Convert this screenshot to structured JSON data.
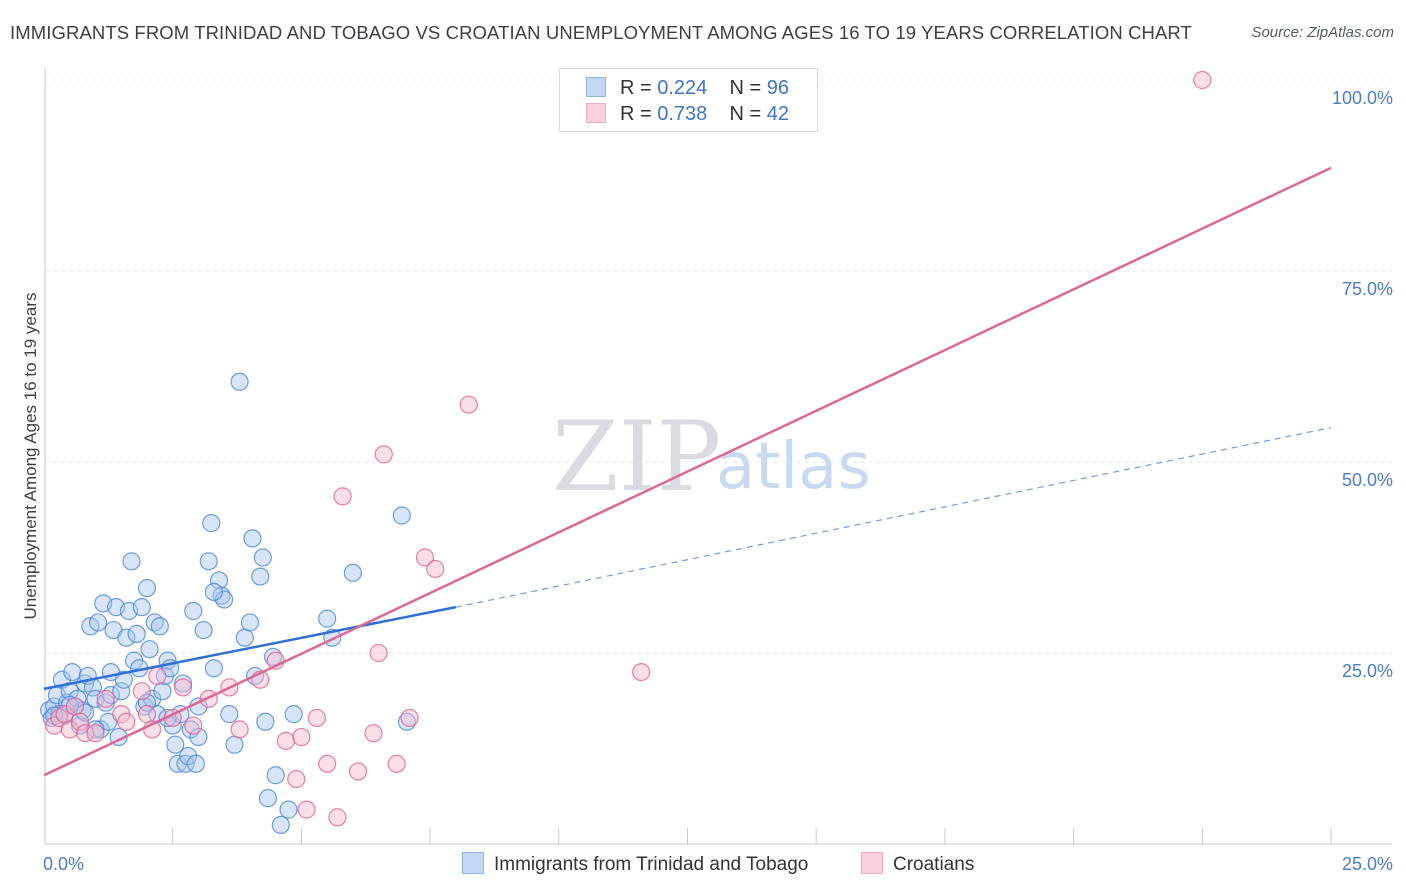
{
  "header": {
    "title": "IMMIGRANTS FROM TRINIDAD AND TOBAGO VS CROATIAN UNEMPLOYMENT AMONG AGES 16 TO 19 YEARS CORRELATION CHART",
    "source": "Source: ZipAtlas.com"
  },
  "watermark": {
    "zip": "ZIP",
    "atlas": "atlas"
  },
  "legend": {
    "r_label": "R =",
    "n_label": "N =",
    "rows": [
      {
        "r": "0.224",
        "n": "96",
        "color": "#8fb4e8"
      },
      {
        "r": "0.738",
        "n": "42",
        "color": "#f2a9c3"
      }
    ]
  },
  "bottom_legend": [
    {
      "label": "Immigrants from Trinidad and Tobago",
      "color": "#8fb4e8"
    },
    {
      "label": "Croatians",
      "color": "#f2a9c3"
    }
  ],
  "chart_data": {
    "type": "scatter",
    "title": "IMMIGRANTS FROM TRINIDAD AND TOBAGO VS CROATIAN UNEMPLOYMENT AMONG AGES 16 TO 19 YEARS CORRELATION CHART",
    "xlabel": "",
    "ylabel": "Unemployment Among Ages 16 to 19 years",
    "xlim": [
      0,
      25
    ],
    "ylim": [
      0,
      100
    ],
    "x_ticks": [
      0,
      25
    ],
    "x_tick_labels": [
      "0.0%",
      "25.0%"
    ],
    "y_ticks": [
      25,
      50,
      75,
      100
    ],
    "y_tick_labels": [
      "25.0%",
      "50.0%",
      "75.0%",
      "100.0%"
    ],
    "grid": true,
    "legend_position": "top-center",
    "series": [
      {
        "name": "Immigrants from Trinidad and Tobago",
        "color": "#4a86e0",
        "fill": "#a9c6ef",
        "trend": {
          "x": [
            0,
            8
          ],
          "y": [
            20.3,
            31.0
          ],
          "dashed_extension_to": [
            25,
            54.5
          ]
        },
        "points": [
          [
            0.1,
            17.5
          ],
          [
            0.15,
            16.5
          ],
          [
            0.2,
            18.0
          ],
          [
            0.25,
            19.5
          ],
          [
            0.3,
            17.0
          ],
          [
            0.35,
            21.5
          ],
          [
            0.4,
            16.8
          ],
          [
            0.45,
            18.5
          ],
          [
            0.5,
            20.0
          ],
          [
            0.55,
            22.5
          ],
          [
            0.6,
            18.0
          ],
          [
            0.65,
            19.0
          ],
          [
            0.7,
            15.5
          ],
          [
            0.75,
            17.5
          ],
          [
            0.8,
            21.0
          ],
          [
            0.85,
            22.0
          ],
          [
            0.9,
            28.5
          ],
          [
            0.95,
            20.5
          ],
          [
            1.0,
            19.0
          ],
          [
            1.05,
            29.0
          ],
          [
            1.1,
            15.0
          ],
          [
            1.15,
            31.5
          ],
          [
            1.2,
            18.5
          ],
          [
            1.25,
            16.0
          ],
          [
            1.3,
            19.5
          ],
          [
            1.35,
            28.0
          ],
          [
            1.4,
            31.0
          ],
          [
            1.45,
            14.0
          ],
          [
            1.5,
            20.0
          ],
          [
            1.55,
            21.5
          ],
          [
            1.6,
            27.0
          ],
          [
            1.65,
            30.5
          ],
          [
            1.7,
            37.0
          ],
          [
            1.75,
            24.0
          ],
          [
            1.8,
            27.5
          ],
          [
            1.85,
            23.0
          ],
          [
            1.9,
            31.0
          ],
          [
            1.95,
            18.0
          ],
          [
            2.0,
            33.5
          ],
          [
            2.05,
            25.5
          ],
          [
            2.1,
            19.0
          ],
          [
            2.15,
            29.0
          ],
          [
            2.2,
            17.0
          ],
          [
            2.25,
            28.5
          ],
          [
            2.3,
            20.0
          ],
          [
            2.35,
            22.0
          ],
          [
            2.4,
            24.0
          ],
          [
            2.45,
            23.0
          ],
          [
            2.5,
            15.5
          ],
          [
            2.55,
            13.0
          ],
          [
            2.6,
            10.5
          ],
          [
            2.65,
            17.0
          ],
          [
            2.7,
            21.0
          ],
          [
            2.75,
            10.5
          ],
          [
            2.8,
            11.5
          ],
          [
            2.85,
            15.0
          ],
          [
            2.9,
            30.5
          ],
          [
            2.95,
            10.5
          ],
          [
            3.0,
            14.0
          ],
          [
            3.1,
            28.0
          ],
          [
            3.2,
            37.0
          ],
          [
            3.25,
            42.0
          ],
          [
            3.3,
            23.0
          ],
          [
            3.4,
            34.5
          ],
          [
            3.45,
            32.5
          ],
          [
            3.5,
            32.0
          ],
          [
            3.6,
            17.0
          ],
          [
            3.7,
            13.0
          ],
          [
            3.8,
            60.5
          ],
          [
            3.9,
            27.0
          ],
          [
            4.0,
            29.0
          ],
          [
            4.05,
            40.0
          ],
          [
            4.1,
            22.0
          ],
          [
            4.2,
            35.0
          ],
          [
            4.25,
            37.5
          ],
          [
            4.3,
            16.0
          ],
          [
            4.35,
            6.0
          ],
          [
            4.45,
            24.5
          ],
          [
            4.5,
            9.0
          ],
          [
            4.6,
            2.5
          ],
          [
            4.75,
            4.5
          ],
          [
            4.85,
            17.0
          ],
          [
            5.5,
            29.5
          ],
          [
            5.6,
            27.0
          ],
          [
            6.0,
            35.5
          ],
          [
            6.95,
            43.0
          ],
          [
            7.05,
            16.0
          ],
          [
            0.2,
            16.8
          ],
          [
            0.5,
            18.2
          ],
          [
            0.8,
            17.2
          ],
          [
            1.0,
            15.0
          ],
          [
            1.3,
            22.5
          ],
          [
            2.0,
            18.5
          ],
          [
            2.4,
            16.5
          ],
          [
            3.0,
            18.0
          ],
          [
            3.3,
            33.0
          ]
        ]
      },
      {
        "name": "Croatians",
        "color": "#e0628f",
        "fill": "#f4b7cc",
        "trend": {
          "x": [
            0,
            25
          ],
          "y": [
            9.0,
            88.5
          ]
        },
        "points": [
          [
            0.2,
            15.5
          ],
          [
            0.3,
            16.5
          ],
          [
            0.4,
            17.0
          ],
          [
            0.5,
            15.0
          ],
          [
            0.6,
            18.0
          ],
          [
            0.7,
            16.0
          ],
          [
            0.8,
            14.5
          ],
          [
            1.0,
            14.5
          ],
          [
            1.2,
            19.0
          ],
          [
            1.5,
            17.0
          ],
          [
            1.6,
            16.0
          ],
          [
            1.9,
            20.0
          ],
          [
            2.0,
            17.0
          ],
          [
            2.1,
            15.0
          ],
          [
            2.2,
            22.0
          ],
          [
            2.5,
            16.5
          ],
          [
            2.7,
            20.5
          ],
          [
            2.9,
            15.5
          ],
          [
            3.2,
            19.0
          ],
          [
            3.6,
            20.5
          ],
          [
            3.8,
            15.0
          ],
          [
            4.2,
            21.5
          ],
          [
            4.5,
            24.0
          ],
          [
            4.7,
            13.5
          ],
          [
            4.9,
            8.5
          ],
          [
            5.0,
            14.0
          ],
          [
            5.1,
            4.5
          ],
          [
            5.3,
            16.5
          ],
          [
            5.5,
            10.5
          ],
          [
            5.7,
            3.5
          ],
          [
            5.8,
            45.5
          ],
          [
            6.1,
            9.5
          ],
          [
            6.4,
            14.5
          ],
          [
            6.5,
            25.0
          ],
          [
            6.6,
            51.0
          ],
          [
            6.85,
            10.5
          ],
          [
            7.1,
            16.5
          ],
          [
            7.4,
            37.5
          ],
          [
            7.6,
            36.0
          ],
          [
            8.25,
            57.5
          ],
          [
            11.6,
            22.5
          ],
          [
            22.5,
            100.0
          ]
        ]
      }
    ]
  }
}
